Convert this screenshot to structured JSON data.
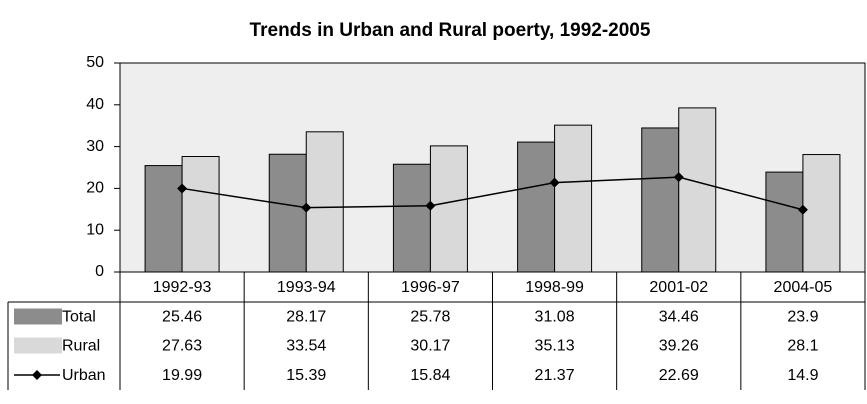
{
  "chart_data": {
    "type": "bar",
    "title": "Trends in Urban and Rural poerty, 1992-2005",
    "categories": [
      "1992-93",
      "1993-94",
      "1996-97",
      "1998-99",
      "2001-02",
      "2004-05"
    ],
    "series": [
      {
        "name": "Total",
        "color": "#8c8c8c",
        "type": "bar",
        "values": [
          25.46,
          28.17,
          25.78,
          31.08,
          34.46,
          23.9
        ]
      },
      {
        "name": "Rural",
        "color": "#d9d9d9",
        "type": "bar",
        "values": [
          27.63,
          33.54,
          30.17,
          35.13,
          39.26,
          28.1
        ]
      },
      {
        "name": "Urban",
        "color": "#000000",
        "type": "line",
        "values": [
          19.99,
          15.39,
          15.84,
          21.37,
          22.69,
          14.9
        ]
      }
    ],
    "ylim": [
      0,
      50
    ],
    "yticks": [
      0,
      10,
      20,
      30,
      40,
      50
    ],
    "plot_background": "#eeeeee"
  }
}
